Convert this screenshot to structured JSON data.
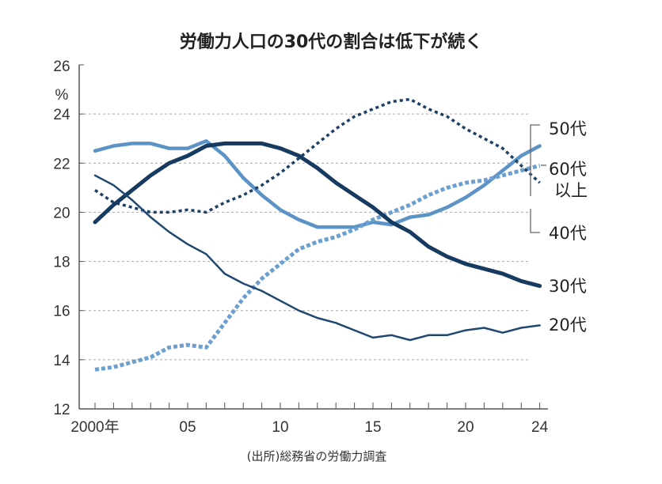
{
  "chart_data": {
    "type": "line",
    "title": "労働力人口の30代の割合は低下が続く",
    "ylabel": "%",
    "source": "(出所)総務省の労働力調査",
    "ylim": [
      12,
      26
    ],
    "yticks": [
      "12",
      "14",
      "16",
      "18",
      "20",
      "22",
      "24",
      "26"
    ],
    "xlim": [
      2000,
      2024
    ],
    "xtick_labels": [
      {
        "year": 2000,
        "label": "2000年"
      },
      {
        "year": 2005,
        "label": "05"
      },
      {
        "year": 2010,
        "label": "10"
      },
      {
        "year": 2015,
        "label": "15"
      },
      {
        "year": 2020,
        "label": "20"
      },
      {
        "year": 2024,
        "label": "24"
      }
    ],
    "grid": true,
    "x": [
      2000,
      2001,
      2002,
      2003,
      2004,
      2005,
      2006,
      2007,
      2008,
      2009,
      2010,
      2011,
      2012,
      2013,
      2014,
      2015,
      2016,
      2017,
      2018,
      2019,
      2020,
      2021,
      2022,
      2023,
      2024
    ],
    "series": [
      {
        "name": "50代",
        "color": "#5b93c7",
        "style": "solid",
        "width": 4.5,
        "values": [
          22.5,
          22.7,
          22.8,
          22.8,
          22.6,
          22.6,
          22.9,
          22.3,
          21.4,
          20.7,
          20.1,
          19.7,
          19.4,
          19.4,
          19.4,
          19.6,
          19.5,
          19.8,
          19.9,
          20.2,
          20.6,
          21.1,
          21.7,
          22.3,
          22.7
        ]
      },
      {
        "name": "60代以上",
        "color": "#6a9fd0",
        "style": "dotted",
        "width": 5,
        "values": [
          13.6,
          13.7,
          13.9,
          14.1,
          14.5,
          14.6,
          14.5,
          15.5,
          16.5,
          17.3,
          17.9,
          18.5,
          18.8,
          19.0,
          19.3,
          19.7,
          20.0,
          20.3,
          20.7,
          21.0,
          21.2,
          21.3,
          21.5,
          21.7,
          21.9
        ]
      },
      {
        "name": "40代",
        "color": "#1d3f66",
        "style": "dotted",
        "width": 3.5,
        "values": [
          20.9,
          20.4,
          20.2,
          20.0,
          20.0,
          20.1,
          20.0,
          20.4,
          20.7,
          21.1,
          21.6,
          22.2,
          22.8,
          23.4,
          23.9,
          24.2,
          24.5,
          24.6,
          24.2,
          23.9,
          23.4,
          23.0,
          22.6,
          21.9,
          21.2
        ]
      },
      {
        "name": "30代",
        "color": "#173a60",
        "style": "solid",
        "width": 5,
        "values": [
          19.6,
          20.3,
          20.9,
          21.5,
          22.0,
          22.3,
          22.7,
          22.8,
          22.8,
          22.8,
          22.6,
          22.3,
          21.8,
          21.2,
          20.7,
          20.2,
          19.6,
          19.2,
          18.6,
          18.2,
          17.9,
          17.7,
          17.5,
          17.2,
          17.0
        ]
      },
      {
        "name": "20代",
        "color": "#1f4770",
        "style": "solid",
        "width": 2.5,
        "values": [
          21.5,
          21.1,
          20.5,
          19.8,
          19.2,
          18.7,
          18.3,
          17.5,
          17.1,
          16.8,
          16.4,
          16.0,
          15.7,
          15.5,
          15.2,
          14.9,
          15.0,
          14.8,
          15.0,
          15.0,
          15.2,
          15.3,
          15.1,
          15.3,
          15.4
        ]
      }
    ],
    "labels": {
      "s50": "50代",
      "s60a": "60代",
      "s60b": "以上",
      "s40": "40代",
      "s30": "30代",
      "s20": "20代"
    }
  }
}
